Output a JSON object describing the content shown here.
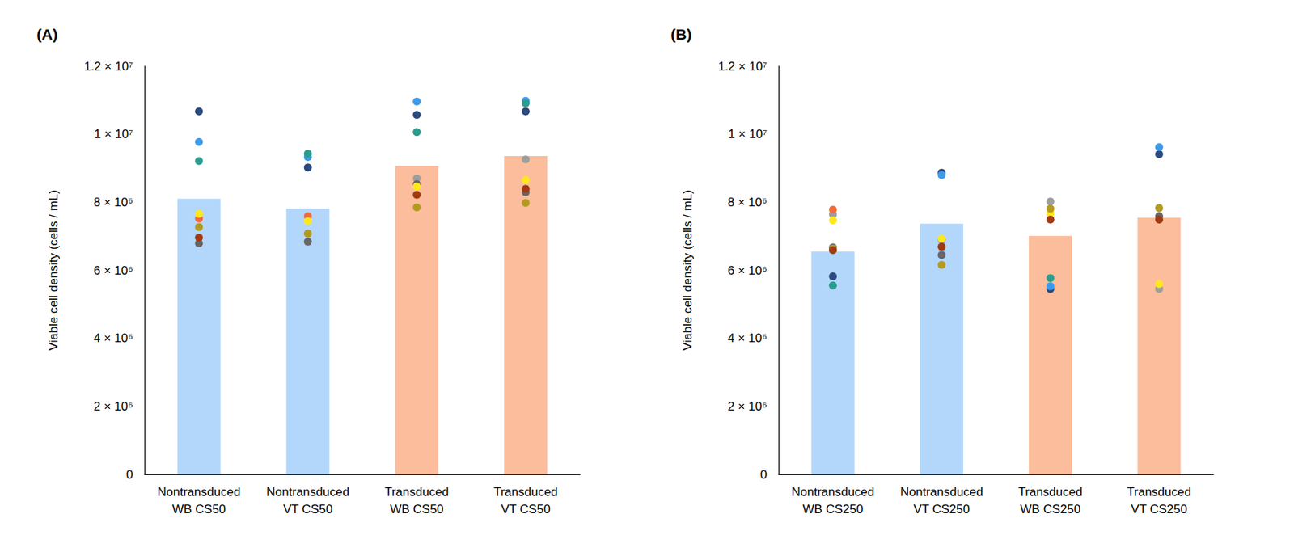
{
  "chart_data": [
    {
      "type": "bar",
      "title": "(A)",
      "y_label": "Viable cell density (cells / mL)",
      "categories": [
        "Nontransduced\nWB CS50",
        "Nontransduced\nVT CS50",
        "Transduced\nWB CS50",
        "Transduced\nVT CS50"
      ],
      "values": [
        8100000,
        7810000,
        9070000,
        9360000
      ],
      "colors": [
        "#b3d7fb",
        "#b3d7fb",
        "#fbbd9c",
        "#fbbd9c"
      ],
      "ylim": [
        0,
        12000000
      ],
      "yticks": [
        0,
        {
          "value": 2000000,
          "label": "2 × 10⁶"
        },
        {
          "value": 4000000,
          "label": "4 × 10⁶"
        },
        {
          "value": 6000000,
          "label": "6 × 10⁶"
        },
        {
          "value": 8000000,
          "label": "8 × 10⁶"
        },
        {
          "value": 10000000,
          "label": "1 × 10⁷"
        },
        {
          "value": 12000000,
          "label": "1.2 × 10⁷"
        }
      ],
      "grid": false,
      "series": [
        {
          "type": "scatter",
          "marker": "circle",
          "color": "#2b4a7e",
          "values": [
            10670000,
            9020000,
            10570000,
            10670000
          ]
        },
        {
          "type": "scatter",
          "marker": "circle",
          "color": "#3d9be9",
          "values": [
            9770000,
            9330000,
            10960000,
            10980000
          ]
        },
        {
          "type": "scatter",
          "marker": "circle",
          "color": "#2a9d8f",
          "values": [
            9210000,
            9430000,
            10060000,
            10910000
          ]
        },
        {
          "type": "scatter",
          "marker": "circle",
          "color": "#9e9e9e",
          "values": [
            null,
            null,
            8700000,
            9260000
          ]
        },
        {
          "type": "scatter",
          "marker": "circle",
          "color": "#666666",
          "values": [
            6790000,
            6840000,
            8530000,
            8290000
          ]
        },
        {
          "type": "scatter",
          "marker": "circle",
          "color": "#f26b38",
          "values": [
            7520000,
            7590000,
            null,
            null
          ]
        },
        {
          "type": "scatter",
          "marker": "circle",
          "color": "#ffe81a",
          "values": [
            7660000,
            7440000,
            8460000,
            8650000
          ]
        },
        {
          "type": "scatter",
          "marker": "circle",
          "color": "#b39b1e",
          "values": [
            7270000,
            7080000,
            7850000,
            7980000
          ]
        },
        {
          "type": "scatter",
          "marker": "circle",
          "color": "#a13a10",
          "values": [
            6960000,
            null,
            8220000,
            8390000
          ]
        }
      ]
    },
    {
      "type": "bar",
      "title": "(B)",
      "y_label": "Viable cell density (cells / mL)",
      "categories": [
        "Nontransduced\nWB CS250",
        "Nontransduced\nVT CS250",
        "Transduced\nWB CS250",
        "Transduced\nVT CS250"
      ],
      "values": [
        6550000,
        7370000,
        7010000,
        7540000
      ],
      "colors": [
        "#b3d7fb",
        "#b3d7fb",
        "#fbbd9c",
        "#fbbd9c"
      ],
      "ylim": [
        0,
        12000000
      ],
      "yticks": [
        0,
        {
          "value": 2000000,
          "label": "2 × 10⁶"
        },
        {
          "value": 4000000,
          "label": "4 × 10⁶"
        },
        {
          "value": 6000000,
          "label": "6 × 10⁶"
        },
        {
          "value": 8000000,
          "label": "8 × 10⁶"
        },
        {
          "value": 10000000,
          "label": "1 × 10⁷"
        },
        {
          "value": 12000000,
          "label": "1.2 × 10⁷"
        }
      ],
      "grid": false,
      "series": [
        {
          "type": "scatter",
          "marker": "circle",
          "color": "#2b4a7e",
          "values": [
            5820000,
            8870000,
            5450000,
            9410000
          ]
        },
        {
          "type": "scatter",
          "marker": "circle",
          "color": "#3d9be9",
          "values": [
            null,
            8800000,
            5530000,
            9620000
          ]
        },
        {
          "type": "scatter",
          "marker": "circle",
          "color": "#2a9d8f",
          "values": [
            5550000,
            null,
            5770000,
            null
          ]
        },
        {
          "type": "scatter",
          "marker": "circle",
          "color": "#9e9e9e",
          "values": [
            7640000,
            6880000,
            8020000,
            5450000
          ]
        },
        {
          "type": "scatter",
          "marker": "circle",
          "color": "#666666",
          "values": [
            6670000,
            6450000,
            null,
            7590000
          ]
        },
        {
          "type": "scatter",
          "marker": "circle",
          "color": "#f26b38",
          "values": [
            7780000,
            null,
            null,
            null
          ]
        },
        {
          "type": "scatter",
          "marker": "circle",
          "color": "#ffe81a",
          "values": [
            7470000,
            6930000,
            7680000,
            5600000
          ]
        },
        {
          "type": "scatter",
          "marker": "circle",
          "color": "#b39b1e",
          "values": [
            6640000,
            6160000,
            7810000,
            7830000
          ]
        },
        {
          "type": "scatter",
          "marker": "circle",
          "color": "#a13a10",
          "values": [
            6590000,
            6690000,
            7490000,
            7490000
          ]
        }
      ]
    }
  ]
}
